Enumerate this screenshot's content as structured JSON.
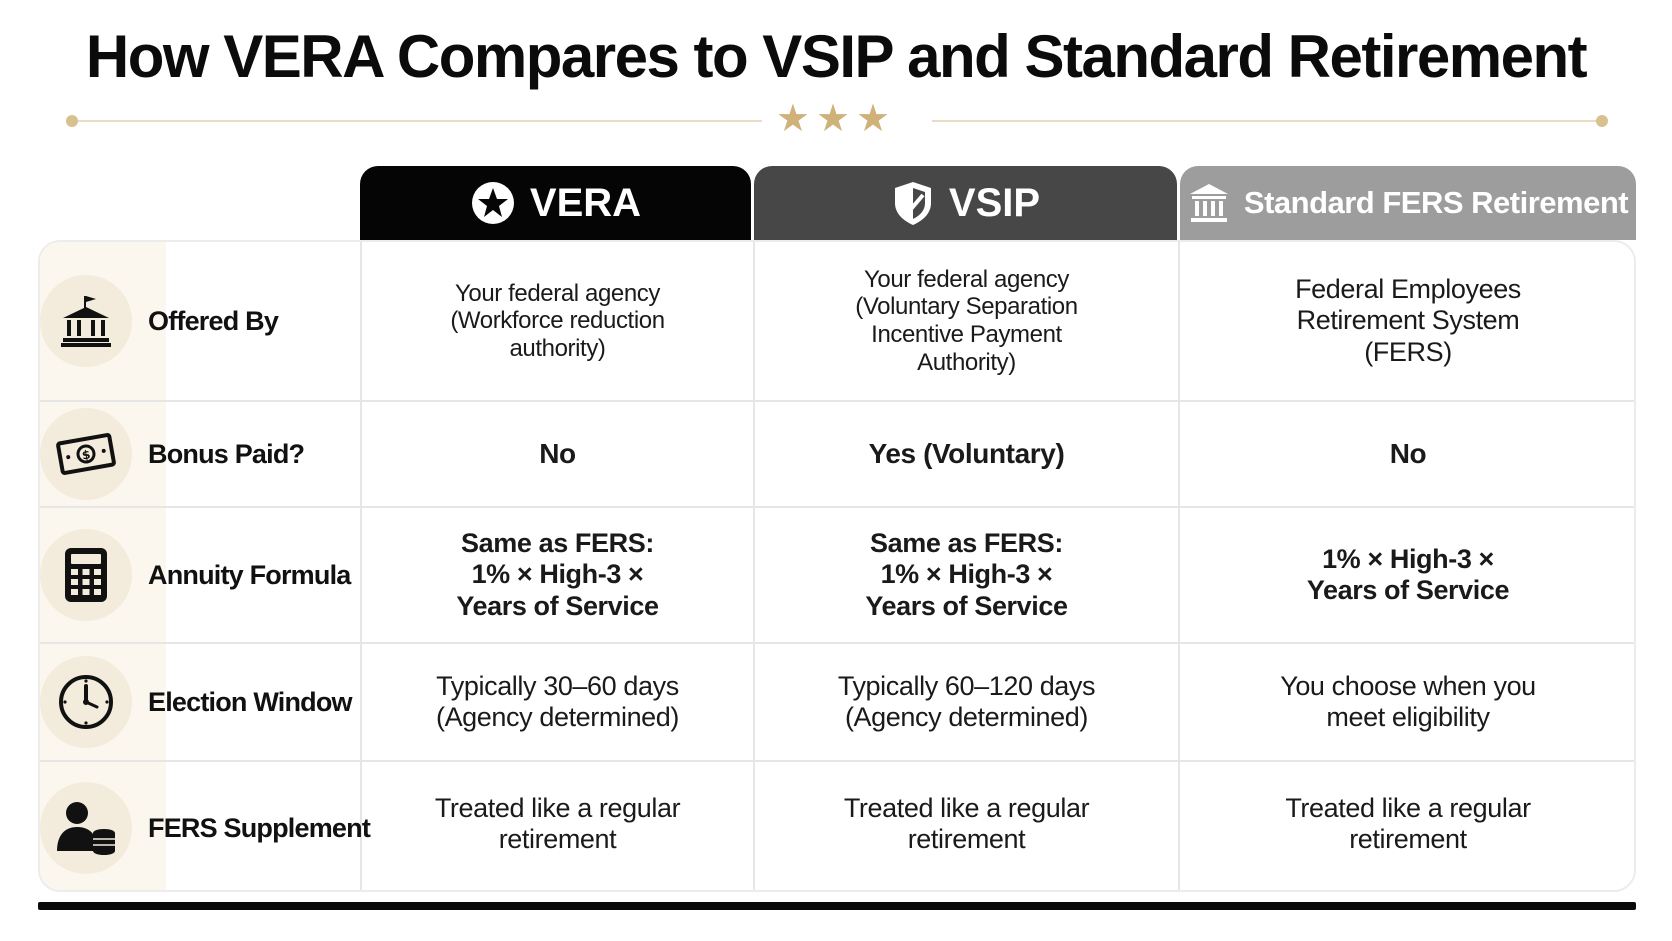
{
  "title": "How VERA Compares to VSIP and Standard Retirement",
  "decoration": {
    "stars": "★★★",
    "accent_color": "#cfb27a"
  },
  "columns": [
    {
      "label": "VERA",
      "icon": "star-circle-icon",
      "color": "#050505"
    },
    {
      "label": "VSIP",
      "icon": "shield-icon",
      "color": "#474747"
    },
    {
      "label": "Standard FERS Retirement",
      "icon": "bank-icon",
      "color": "#9d9d9d"
    }
  ],
  "rows": [
    {
      "label": "Offered By",
      "icon": "government-building-icon",
      "vera": [
        "Your federal agency",
        "(Workforce reduction",
        "authority)"
      ],
      "vsip": [
        "Your federal agency",
        "(Voluntary Separation",
        "Incentive Payment",
        "Authority)"
      ],
      "std": [
        "Federal Employees",
        "Retirement System",
        "(FERS)"
      ]
    },
    {
      "label": "Bonus Paid?",
      "icon": "cash-icon",
      "vera": [
        "No"
      ],
      "vsip": [
        "Yes (Voluntary)"
      ],
      "std": [
        "No"
      ]
    },
    {
      "label": "Annuity Formula",
      "icon": "calculator-icon",
      "vera": [
        "Same as FERS:",
        "1% × High-3 ×",
        "Years of Service"
      ],
      "vsip": [
        "Same as FERS:",
        "1% × High-3 ×",
        "Years of Service"
      ],
      "std": [
        "1% × High-3 ×",
        "Years of Service"
      ]
    },
    {
      "label": "Election Window",
      "icon": "clock-icon",
      "vera": [
        "Typically 30–60 days",
        "(Agency determined)"
      ],
      "vsip": [
        "Typically 60–120 days",
        "(Agency determined)"
      ],
      "std": [
        "You choose when you",
        "meet eligibility"
      ]
    },
    {
      "label": "FERS Supplement",
      "icon": "person-coins-icon",
      "vera": [
        "Treated like a regular",
        "retirement"
      ],
      "vsip": [
        "Treated like a regular",
        "retirement"
      ],
      "std": [
        "Treated like a regular",
        "retirement"
      ]
    }
  ]
}
